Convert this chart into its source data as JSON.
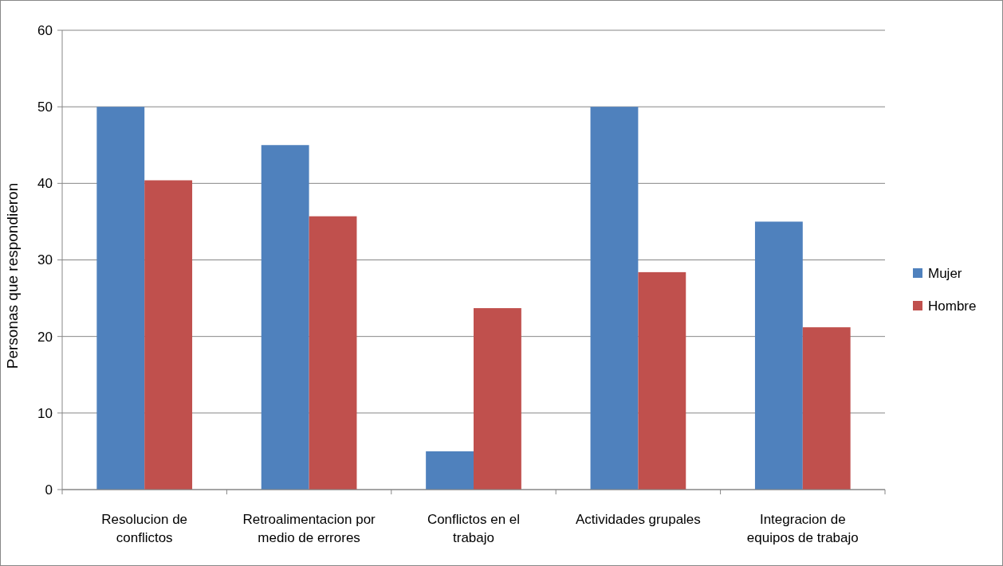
{
  "chart_data": {
    "type": "bar",
    "ylabel": "Personas que respondieron",
    "categories": [
      "Resolucion de conflictos",
      "Retroalimentacion por medio de errores",
      "Conflictos en el trabajo",
      "Actividades grupales",
      "Integracion de equipos de trabajo"
    ],
    "series": [
      {
        "name": "Mujer",
        "color": "#4f81bd",
        "values": [
          50,
          45,
          5,
          50,
          35
        ]
      },
      {
        "name": "Hombre",
        "color": "#c0504d",
        "values": [
          40.4,
          35.7,
          23.7,
          28.4,
          21.2
        ]
      }
    ],
    "ylim": [
      0,
      60
    ],
    "yticks": [
      0,
      10,
      20,
      30,
      40,
      50,
      60
    ],
    "grid": "y",
    "legend": "right"
  }
}
